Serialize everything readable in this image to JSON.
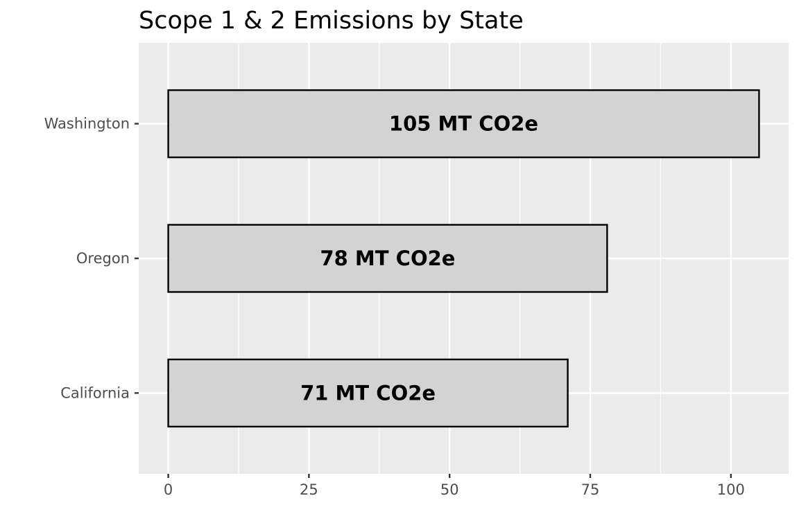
{
  "chart_data": {
    "type": "bar",
    "orientation": "horizontal",
    "title": "Scope 1 & 2 Emissions by State",
    "xlabel": "",
    "ylabel": "",
    "categories": [
      "Washington",
      "Oregon",
      "California"
    ],
    "values": [
      105,
      78,
      71
    ],
    "data_labels": [
      "105 MT CO2e",
      "78 MT CO2e",
      "71 MT CO2e"
    ],
    "x_ticks": [
      0,
      25,
      50,
      75,
      100
    ],
    "x_tick_labels": [
      "0",
      "25",
      "50",
      "75",
      "100"
    ],
    "xlim": [
      -5.25,
      110.25
    ],
    "grid": true,
    "legend": "none",
    "colors": {
      "panel_background": "#ebebeb",
      "gridline": "#ffffff",
      "bar_fill": "#d3d3d3",
      "bar_outline": "#000000",
      "tick_label": "#4d4d4d",
      "tick_mark": "#333333",
      "title": "#000000"
    }
  }
}
